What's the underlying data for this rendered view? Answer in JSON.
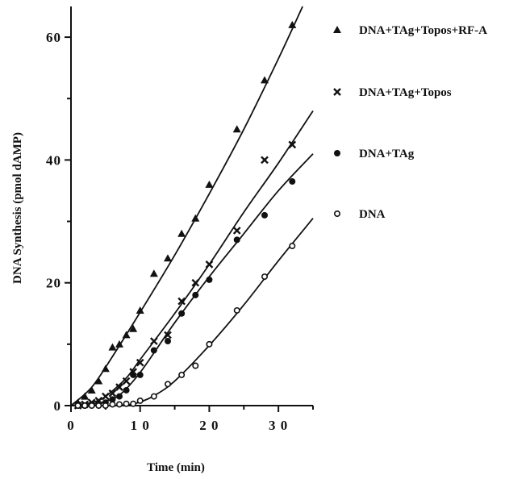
{
  "chart_data": {
    "type": "scatter",
    "title": "",
    "xlabel": "Time (min)",
    "ylabel": "DNA Synthesis (pmol dAMP)",
    "xlim": [
      0,
      35
    ],
    "ylim": [
      0,
      65
    ],
    "x_ticks": [
      0,
      10,
      20,
      30
    ],
    "x_tick_labels": [
      "0",
      "1 0",
      "2 0",
      "3 0"
    ],
    "y_ticks": [
      0,
      20,
      40,
      60
    ],
    "y_tick_labels": [
      "0",
      "20",
      "40",
      "60"
    ],
    "grid": false,
    "legend_position": "right",
    "series": [
      {
        "name": "DNA+TAg+Topos+RF-A",
        "marker": "triangle",
        "points": [
          [
            1,
            0.5
          ],
          [
            2,
            1.5
          ],
          [
            3,
            2.5
          ],
          [
            4,
            4
          ],
          [
            5,
            6
          ],
          [
            6,
            9.5
          ],
          [
            7,
            10
          ],
          [
            8,
            11.5
          ],
          [
            9,
            12.5
          ],
          [
            10,
            15.5
          ],
          [
            12,
            21.5
          ],
          [
            14,
            24
          ],
          [
            16,
            28
          ],
          [
            18,
            30.5
          ],
          [
            20,
            36
          ],
          [
            24,
            45
          ],
          [
            28,
            53
          ],
          [
            32,
            62
          ]
        ],
        "fit": [
          [
            0,
            0
          ],
          [
            3,
            3
          ],
          [
            6,
            8
          ],
          [
            10,
            15.2
          ],
          [
            15,
            24.5
          ],
          [
            20,
            34.5
          ],
          [
            25,
            45
          ],
          [
            30,
            56.5
          ],
          [
            33.5,
            65
          ]
        ]
      },
      {
        "name": "DNA+TAg+Topos",
        "marker": "cross",
        "points": [
          [
            1,
            0
          ],
          [
            2,
            0.2
          ],
          [
            3,
            0.5
          ],
          [
            4,
            0.8
          ],
          [
            5,
            1.5
          ],
          [
            6,
            2
          ],
          [
            7,
            3
          ],
          [
            8,
            4
          ],
          [
            9,
            5.5
          ],
          [
            10,
            7
          ],
          [
            12,
            10.5
          ],
          [
            14,
            11.5
          ],
          [
            16,
            17
          ],
          [
            18,
            20
          ],
          [
            20,
            23
          ],
          [
            24,
            28.5
          ],
          [
            28,
            40
          ],
          [
            32,
            42.5
          ]
        ],
        "fit": [
          [
            0,
            0
          ],
          [
            3,
            0.5
          ],
          [
            5,
            1.5
          ],
          [
            8,
            4.5
          ],
          [
            10,
            7.5
          ],
          [
            15,
            15
          ],
          [
            20,
            23
          ],
          [
            25,
            31.5
          ],
          [
            30,
            39.5
          ],
          [
            35,
            48
          ]
        ]
      },
      {
        "name": "DNA+TAg",
        "marker": "filled-circle",
        "points": [
          [
            1,
            0
          ],
          [
            2,
            0
          ],
          [
            3,
            0.2
          ],
          [
            4,
            0.3
          ],
          [
            5,
            0.5
          ],
          [
            6,
            1
          ],
          [
            7,
            1.5
          ],
          [
            8,
            2.5
          ],
          [
            9,
            5
          ],
          [
            10,
            5
          ],
          [
            12,
            9
          ],
          [
            14,
            10.5
          ],
          [
            16,
            15
          ],
          [
            18,
            18
          ],
          [
            20,
            20.5
          ],
          [
            24,
            27
          ],
          [
            28,
            31
          ],
          [
            32,
            36.5
          ]
        ],
        "fit": [
          [
            0,
            0
          ],
          [
            3,
            0.2
          ],
          [
            5,
            0.7
          ],
          [
            7,
            1.7
          ],
          [
            10,
            5.4
          ],
          [
            15,
            13.5
          ],
          [
            20,
            21
          ],
          [
            25,
            28
          ],
          [
            30,
            35
          ],
          [
            35,
            41
          ]
        ]
      },
      {
        "name": "DNA",
        "marker": "open-circle",
        "points": [
          [
            1,
            0
          ],
          [
            2,
            0
          ],
          [
            3,
            0
          ],
          [
            4,
            0
          ],
          [
            5,
            0
          ],
          [
            6,
            0.2
          ],
          [
            7,
            0.2
          ],
          [
            8,
            0.3
          ],
          [
            9,
            0.3
          ],
          [
            10,
            0.8
          ],
          [
            12,
            1.5
          ],
          [
            14,
            3.5
          ],
          [
            16,
            5
          ],
          [
            18,
            6.5
          ],
          [
            20,
            10
          ],
          [
            24,
            15.5
          ],
          [
            28,
            21
          ],
          [
            32,
            26
          ]
        ],
        "fit": [
          [
            0,
            0
          ],
          [
            4,
            0
          ],
          [
            8,
            0.1
          ],
          [
            10,
            0.6
          ],
          [
            12,
            1.6
          ],
          [
            15,
            4
          ],
          [
            20,
            9.8
          ],
          [
            25,
            16.4
          ],
          [
            30,
            23.6
          ],
          [
            35,
            30.5
          ]
        ]
      }
    ]
  }
}
